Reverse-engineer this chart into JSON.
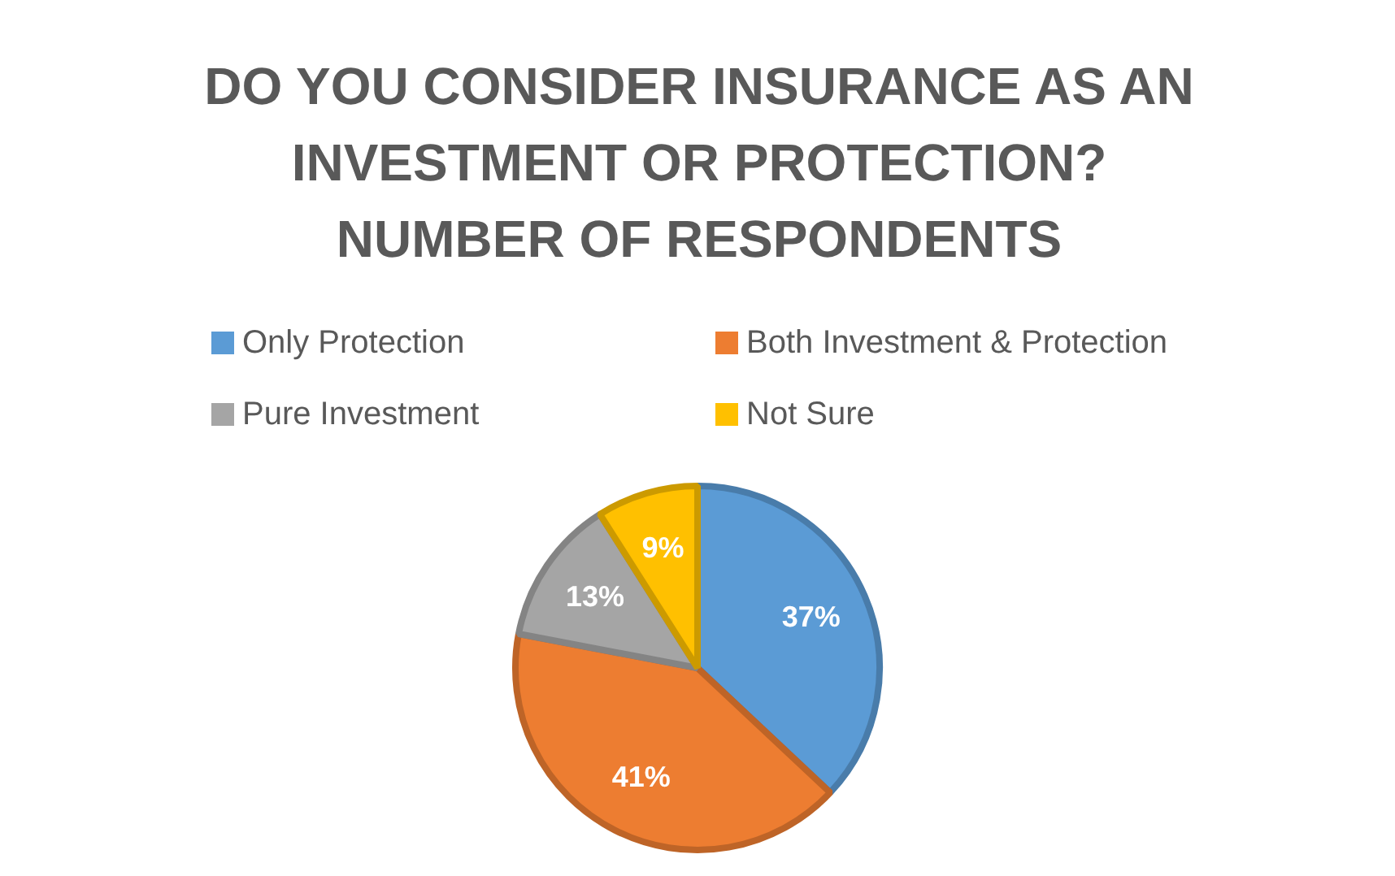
{
  "chart_data": {
    "type": "pie",
    "title": "DO YOU CONSIDER INSURANCE AS AN INVESTMENT OR PROTECTION? NUMBER OF RESPONDENTS",
    "categories": [
      "Only Protection",
      "Both Investment & Protection",
      "Pure Investment",
      "Not Sure"
    ],
    "values": [
      37,
      41,
      13,
      9
    ],
    "colors": [
      "#5b9bd5",
      "#ed7d31",
      "#a5a5a5",
      "#ffc000"
    ],
    "value_labels": [
      "37%",
      "41%",
      "13%",
      "9%"
    ],
    "legend": "top"
  }
}
